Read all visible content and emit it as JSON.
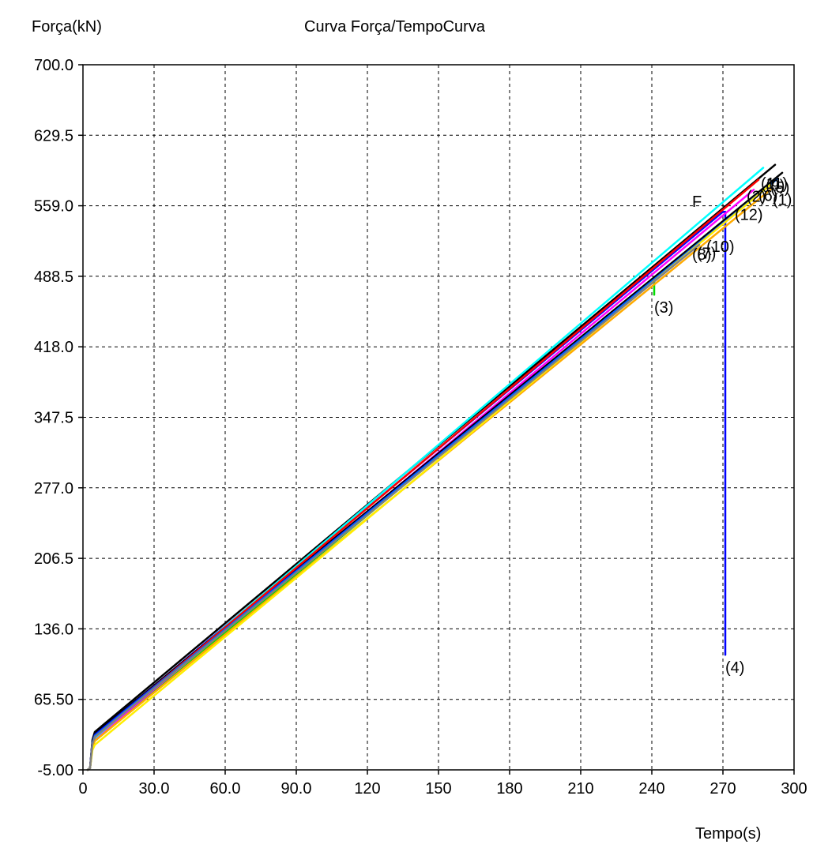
{
  "chart_data": {
    "type": "line",
    "title": "Curva Força/TempoCurva",
    "ylabel": "Força(kN)",
    "xlabel": "Tempo(s)",
    "xlim": [
      0,
      300
    ],
    "ylim": [
      -5.0,
      700.0
    ],
    "xticks": [
      "0",
      "30.0",
      "60.0",
      "90.0",
      "120",
      "150",
      "180",
      "210",
      "240",
      "270",
      "300"
    ],
    "xtick_values": [
      0,
      30,
      60,
      90,
      120,
      150,
      180,
      210,
      240,
      270,
      300
    ],
    "yticks": [
      "-5.00",
      "65.50",
      "136.0",
      "206.5",
      "277.0",
      "347.5",
      "418.0",
      "488.5",
      "559.0",
      "629.5",
      "700.0"
    ],
    "ytick_values": [
      -5.0,
      65.5,
      136.0,
      206.5,
      277.0,
      347.5,
      418.0,
      488.5,
      559.0,
      629.5,
      700.0
    ],
    "grid": true,
    "series": [
      {
        "name": "(4)",
        "color": "#0000ff",
        "points": [
          [
            2,
            -5
          ],
          [
            3,
            -3
          ],
          [
            4,
            22
          ],
          [
            5,
            30
          ],
          [
            270,
            553
          ],
          [
            271,
            553
          ],
          [
            271,
            110
          ]
        ],
        "label_at": [
          271,
          92
        ]
      },
      {
        "name": "(3)",
        "color": "#00dd00",
        "points": [
          [
            2,
            -5
          ],
          [
            3,
            -3
          ],
          [
            4,
            18
          ],
          [
            5,
            24
          ],
          [
            240,
            485
          ],
          [
            241,
            485
          ],
          [
            241,
            470
          ]
        ],
        "label_at": [
          241,
          452
        ]
      },
      {
        "name": "(12)",
        "color": "#ff00ff",
        "points": [
          [
            2,
            -5
          ],
          [
            3,
            -3
          ],
          [
            4,
            20
          ],
          [
            5,
            26
          ],
          [
            283,
            575
          ]
        ],
        "label_at": [
          275,
          545
        ]
      },
      {
        "name": "(8)",
        "color": "#000000",
        "points": [
          [
            2,
            -5
          ],
          [
            3,
            -3
          ],
          [
            4,
            25
          ],
          [
            5,
            33
          ],
          [
            292,
            600
          ]
        ],
        "label_at": [
          257,
          505
        ]
      },
      {
        "name": "(10)",
        "color": "#00ffff",
        "points": [
          [
            2,
            -5
          ],
          [
            3,
            -3
          ],
          [
            4,
            20
          ],
          [
            5,
            27
          ],
          [
            287,
            597
          ]
        ],
        "label_at": [
          263,
          513
        ]
      },
      {
        "name": "(11)",
        "color": "#000000",
        "points": [
          [
            2,
            -5
          ],
          [
            3,
            -3
          ],
          [
            4,
            24
          ],
          [
            5,
            31
          ],
          [
            295,
            592
          ]
        ],
        "label_at": [
          286,
          576
        ]
      },
      {
        "name": "(9)",
        "color": "#0000ff",
        "points": [
          [
            2,
            -5
          ],
          [
            3,
            -3
          ],
          [
            4,
            22
          ],
          [
            5,
            30
          ],
          [
            291,
            582
          ]
        ],
        "label_at": [
          288,
          574
        ]
      },
      {
        "name": "(2)",
        "color": "#ff0000",
        "points": [
          [
            2,
            -5
          ],
          [
            3,
            -3
          ],
          [
            4,
            21
          ],
          [
            5,
            28
          ],
          [
            285,
            585
          ]
        ],
        "label_at": [
          280,
          563
        ]
      },
      {
        "name": "(6)",
        "color": "#ffaa00",
        "points": [
          [
            2,
            -5
          ],
          [
            3,
            -3
          ],
          [
            4,
            18
          ],
          [
            5,
            24
          ],
          [
            290,
            575
          ]
        ],
        "label_at": [
          285,
          564
        ]
      },
      {
        "name": "(5)",
        "color": "#0066ff",
        "points": [
          [
            2,
            -5
          ],
          [
            3,
            -3
          ],
          [
            4,
            22
          ],
          [
            5,
            29
          ],
          [
            293,
            586
          ]
        ],
        "label_at": [
          290,
          572
        ]
      },
      {
        "name": "(1)",
        "color": "#ffee00",
        "points": [
          [
            2,
            -5
          ],
          [
            3,
            -3
          ],
          [
            4,
            15
          ],
          [
            5,
            20
          ],
          [
            290,
            580
          ]
        ],
        "label_at": [
          291,
          560
        ]
      },
      {
        "name": "(7)",
        "color": "#808080",
        "points": [
          [
            2,
            -5
          ],
          [
            3,
            -3
          ],
          [
            4,
            21
          ],
          [
            5,
            28
          ],
          [
            260,
            520
          ]
        ],
        "label_at": [
          259,
          506
        ]
      }
    ],
    "annotations": [
      {
        "text": "F",
        "at": [
          257,
          558
        ],
        "color": "#000000"
      }
    ]
  }
}
